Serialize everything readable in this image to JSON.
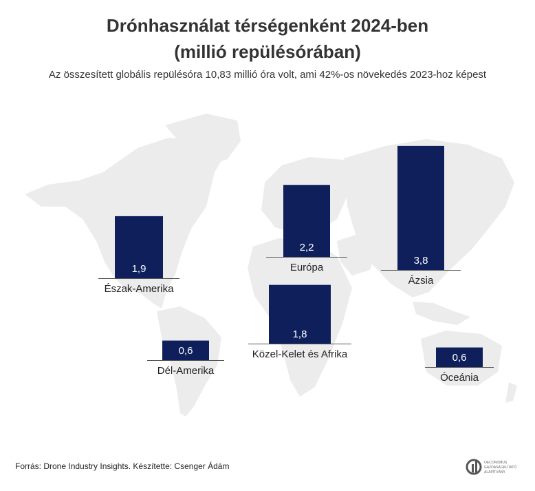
{
  "title_line1": "Drónhasználat térségenként 2024-ben",
  "title_line2": "(millió repülésórában)",
  "subtitle": "Az összesített globális repülésóra 10,83 millió óra volt, ami 42%-os növekedés 2023-hoz képest",
  "source": "Forrás: Drone Industry Insights. Készítette: Csenger Ádám",
  "logo_lines": [
    "OECONOMUS",
    "GAZDASÁGKUTATÓ",
    "ALAPÍTVÁNY"
  ],
  "colors": {
    "bar": "#0f1f5c",
    "map": "#ececec",
    "value_label": "#ffffff",
    "baseline": "#555555"
  },
  "chart_data": {
    "type": "bar",
    "categories": [
      "Észak-Amerika",
      "Európa",
      "Ázsia",
      "Közel-Kelet és Afrika",
      "Dél-Amerika",
      "Óceánia"
    ],
    "values": [
      1.9,
      2.2,
      3.8,
      1.8,
      0.6,
      0.6
    ],
    "value_labels": [
      "1,9",
      "2,2",
      "3,8",
      "1,8",
      "0,6",
      "0,6"
    ],
    "unit": "millió repülésóra"
  }
}
